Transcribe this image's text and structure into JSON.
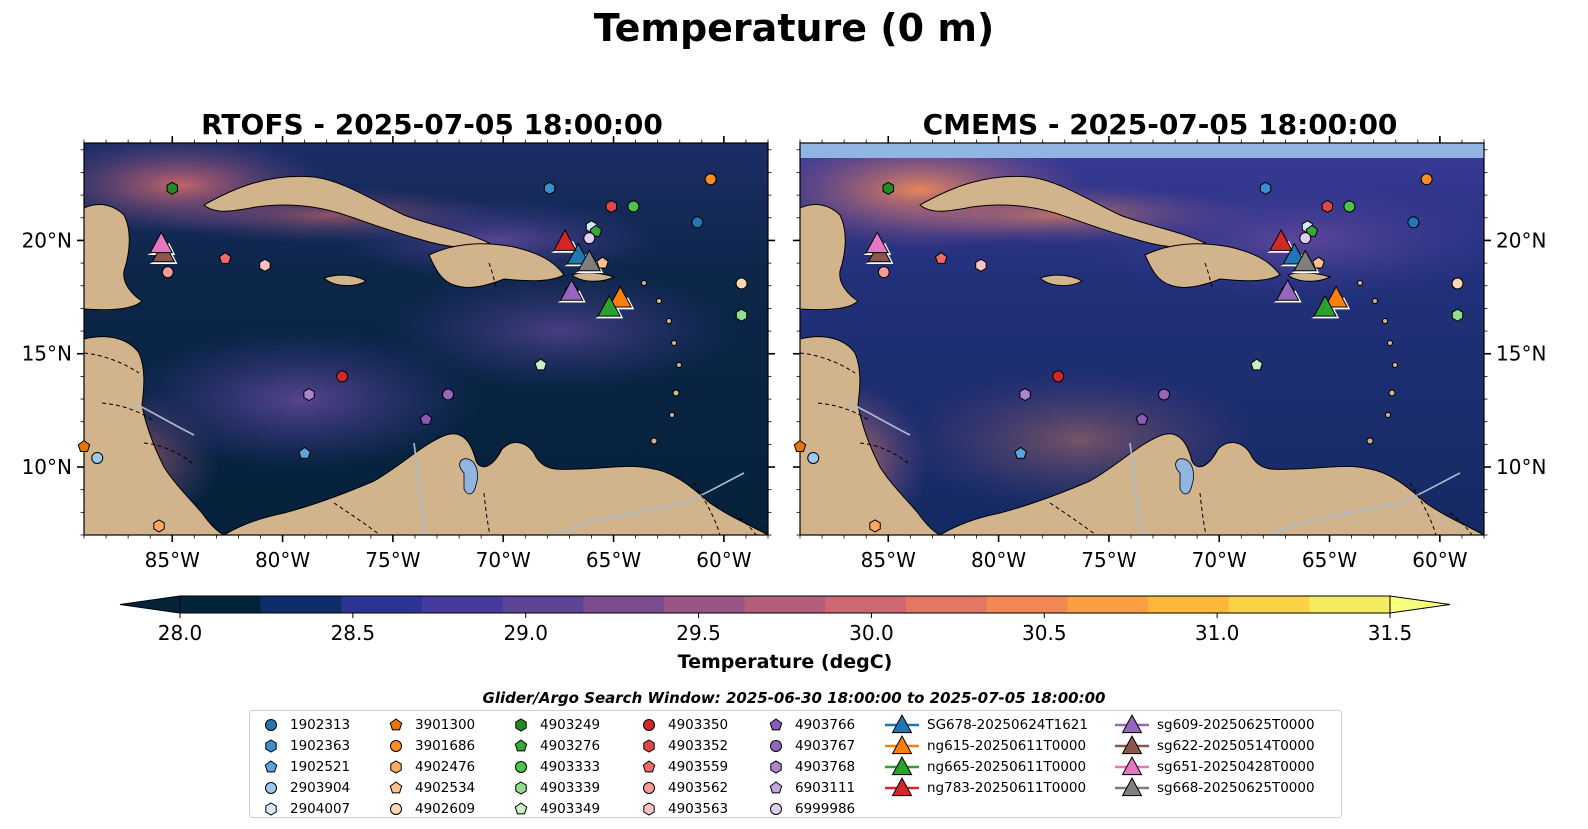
{
  "figure": {
    "suptitle": "Temperature (0 m)",
    "panel_left_title": "RTOFS - 2025-07-05 18:00:00",
    "panel_right_title": "CMEMS - 2025-07-05 18:00:00",
    "colorbar_label": "Temperature (degC)",
    "colorbar_ticks": [
      "28.0",
      "28.5",
      "29.0",
      "29.5",
      "30.0",
      "30.5",
      "31.0",
      "31.5"
    ],
    "colorbar_colors": [
      "#03233a",
      "#0e2d6b",
      "#2c3392",
      "#443b9c",
      "#5c4496",
      "#7a4d90",
      "#985585",
      "#b45e7c",
      "#cd6873",
      "#e27764",
      "#f28954",
      "#fa9f43",
      "#fdb73a",
      "#fbd148",
      "#f4eb62"
    ],
    "colorbar_extend": "both",
    "x_tick_labels": [
      "85°W",
      "80°W",
      "75°W",
      "70°W",
      "65°W",
      "60°W"
    ],
    "y_tick_labels": [
      "20°N",
      "15°N",
      "10°N"
    ],
    "legend_title": "Glider/Argo Search Window: 2025-06-30 18:00:00 to 2025-07-05 18:00:00"
  },
  "chart_data": {
    "type": "scatter",
    "x_range_lon": [
      -89,
      -58
    ],
    "y_range_lat": [
      7,
      24.3
    ],
    "x_ticks_lon": [
      -85,
      -80,
      -75,
      -70,
      -65,
      -60
    ],
    "y_ticks_lat": [
      20,
      15,
      10
    ],
    "argo_floats": [
      {
        "id": "1902313",
        "marker": "circle",
        "color": "#1f77b4",
        "lon": -61.2,
        "lat": 20.8
      },
      {
        "id": "1902363",
        "marker": "hexagon",
        "color": "#3a8fcf",
        "lon": -67.9,
        "lat": 22.3
      },
      {
        "id": "1902521",
        "marker": "pentagon",
        "color": "#5aa5e0",
        "lon": -79.0,
        "lat": 10.6
      },
      {
        "id": "2903904",
        "marker": "circle",
        "color": "#9cc8ee",
        "lon": -88.4,
        "lat": 10.4
      },
      {
        "id": "2904007",
        "marker": "hexagon",
        "color": "#d3e8f8",
        "lon": -66.0,
        "lat": 20.6
      },
      {
        "id": "3901300",
        "marker": "pentagon",
        "color": "#e8750c",
        "lon": -89.0,
        "lat": 10.9
      },
      {
        "id": "3901686",
        "marker": "circle",
        "color": "#ff8c24",
        "lon": -60.6,
        "lat": 22.7
      },
      {
        "id": "4902476",
        "marker": "hexagon",
        "color": "#ffa95e",
        "lon": -85.6,
        "lat": 7.4
      },
      {
        "id": "4902534",
        "marker": "pentagon",
        "color": "#ffc08e",
        "lon": -65.5,
        "lat": 19.0
      },
      {
        "id": "4902609",
        "marker": "circle",
        "color": "#ffd7b5",
        "lon": -59.2,
        "lat": 18.1
      },
      {
        "id": "4903249",
        "marker": "hexagon",
        "color": "#228b22",
        "lon": -85.0,
        "lat": 22.3
      },
      {
        "id": "4903276",
        "marker": "pentagon",
        "color": "#38a838",
        "lon": -65.8,
        "lat": 20.4
      },
      {
        "id": "4903333",
        "marker": "circle",
        "color": "#4cc44c",
        "lon": -64.1,
        "lat": 21.5
      },
      {
        "id": "4903339",
        "marker": "hexagon",
        "color": "#8ede8e",
        "lon": -59.2,
        "lat": 16.7
      },
      {
        "id": "4903349",
        "marker": "pentagon",
        "color": "#c7f2c7",
        "lon": -68.3,
        "lat": 14.5
      },
      {
        "id": "4903350",
        "marker": "circle",
        "color": "#d62728",
        "lon": -77.3,
        "lat": 14.0
      },
      {
        "id": "4903352",
        "marker": "hexagon",
        "color": "#e04646",
        "lon": -65.1,
        "lat": 21.5
      },
      {
        "id": "4903559",
        "marker": "pentagon",
        "color": "#ee6b6b",
        "lon": -82.6,
        "lat": 19.2
      },
      {
        "id": "4903562",
        "marker": "circle",
        "color": "#f59999",
        "lon": -85.2,
        "lat": 18.6
      },
      {
        "id": "4903563",
        "marker": "hexagon",
        "color": "#fbc2c2",
        "lon": -80.8,
        "lat": 18.9
      },
      {
        "id": "4903766",
        "marker": "pentagon",
        "color": "#8a5ab8",
        "lon": -73.5,
        "lat": 12.1
      },
      {
        "id": "4903767",
        "marker": "circle",
        "color": "#9467bd",
        "lon": -72.5,
        "lat": 13.2
      },
      {
        "id": "4903768",
        "marker": "hexagon",
        "color": "#aa85cf",
        "lon": -78.8,
        "lat": 13.2
      },
      {
        "id": "6903111",
        "marker": "pentagon",
        "color": "#c4a6e2",
        "lon": -66.9,
        "lat": 17.8
      },
      {
        "id": "6999986",
        "marker": "circle",
        "color": "#e0cdf3",
        "lon": -66.1,
        "lat": 20.1
      }
    ],
    "gliders": [
      {
        "id": "SG678-20250624T1621",
        "color": "#1f77b4",
        "lon": -66.6,
        "lat": 19.3
      },
      {
        "id": "ng615-20250611T0000",
        "color": "#ff7f0e",
        "lon": -64.7,
        "lat": 17.4
      },
      {
        "id": "ng665-20250611T0000",
        "color": "#2ca02c",
        "lon": -65.2,
        "lat": 17.0
      },
      {
        "id": "ng783-20250611T0000",
        "color": "#d62728",
        "lon": -67.2,
        "lat": 19.9
      },
      {
        "id": "sg609-20250625T0000",
        "color": "#9467bd",
        "lon": -66.9,
        "lat": 17.7
      },
      {
        "id": "sg622-20250514T0000",
        "color": "#8c564b",
        "lon": -85.4,
        "lat": 19.4
      },
      {
        "id": "sg651-20250428T0000",
        "color": "#e377c2",
        "lon": -85.5,
        "lat": 19.8
      },
      {
        "id": "sg668-20250625T0000",
        "color": "#7f7f7f",
        "lon": -66.1,
        "lat": 19.0
      }
    ]
  }
}
